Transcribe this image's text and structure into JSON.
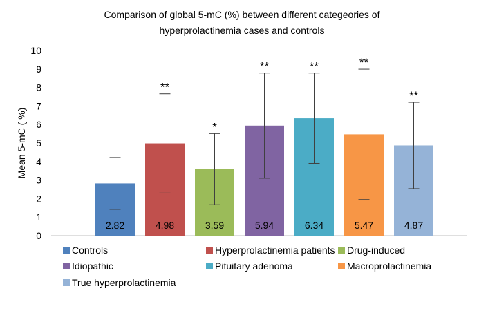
{
  "chart_data": {
    "type": "bar",
    "title": "Comparison of global 5-mC (%) between different categeories of hyperprolactinemia cases and controls",
    "title_lines": [
      "Comparison of global 5-mC (%) between different categeories of",
      "hyperprolactinemia cases and controls"
    ],
    "xlabel": "",
    "ylabel": "Mean 5-mC ( %)",
    "ylim": [
      0,
      10
    ],
    "yticks": [
      0,
      1,
      2,
      3,
      4,
      5,
      6,
      7,
      8,
      9,
      10
    ],
    "grid": false,
    "legend_position": "bottom",
    "series": [
      {
        "name": "Controls",
        "value": 2.82,
        "label": "2.82",
        "error_low": 1.42,
        "error_high": 4.22,
        "significance": "",
        "color": "#4f81bd"
      },
      {
        "name": "Hyperprolactinemia patients",
        "value": 4.98,
        "label": "4.98",
        "error_low": 2.3,
        "error_high": 7.66,
        "significance": "**",
        "color": "#c0504d"
      },
      {
        "name": "Drug-induced",
        "value": 3.59,
        "label": "3.59",
        "error_low": 1.67,
        "error_high": 5.51,
        "significance": "*",
        "color": "#9bbb59"
      },
      {
        "name": "Idiopathic",
        "value": 5.94,
        "label": "5.94",
        "error_low": 3.1,
        "error_high": 8.78,
        "significance": "**",
        "color": "#8064a2"
      },
      {
        "name": "Pituitary adenoma",
        "value": 6.34,
        "label": "6.34",
        "error_low": 3.9,
        "error_high": 8.78,
        "significance": "**",
        "color": "#4bacc6"
      },
      {
        "name": "Macroprolactinemia",
        "value": 5.47,
        "label": "5.47",
        "error_low": 1.95,
        "error_high": 8.99,
        "significance": "**",
        "color": "#f79646"
      },
      {
        "name": "True hyperprolactinemia",
        "value": 4.87,
        "label": "4.87",
        "error_low": 2.54,
        "error_high": 7.2,
        "significance": "**",
        "color": "#95b3d7"
      }
    ]
  }
}
